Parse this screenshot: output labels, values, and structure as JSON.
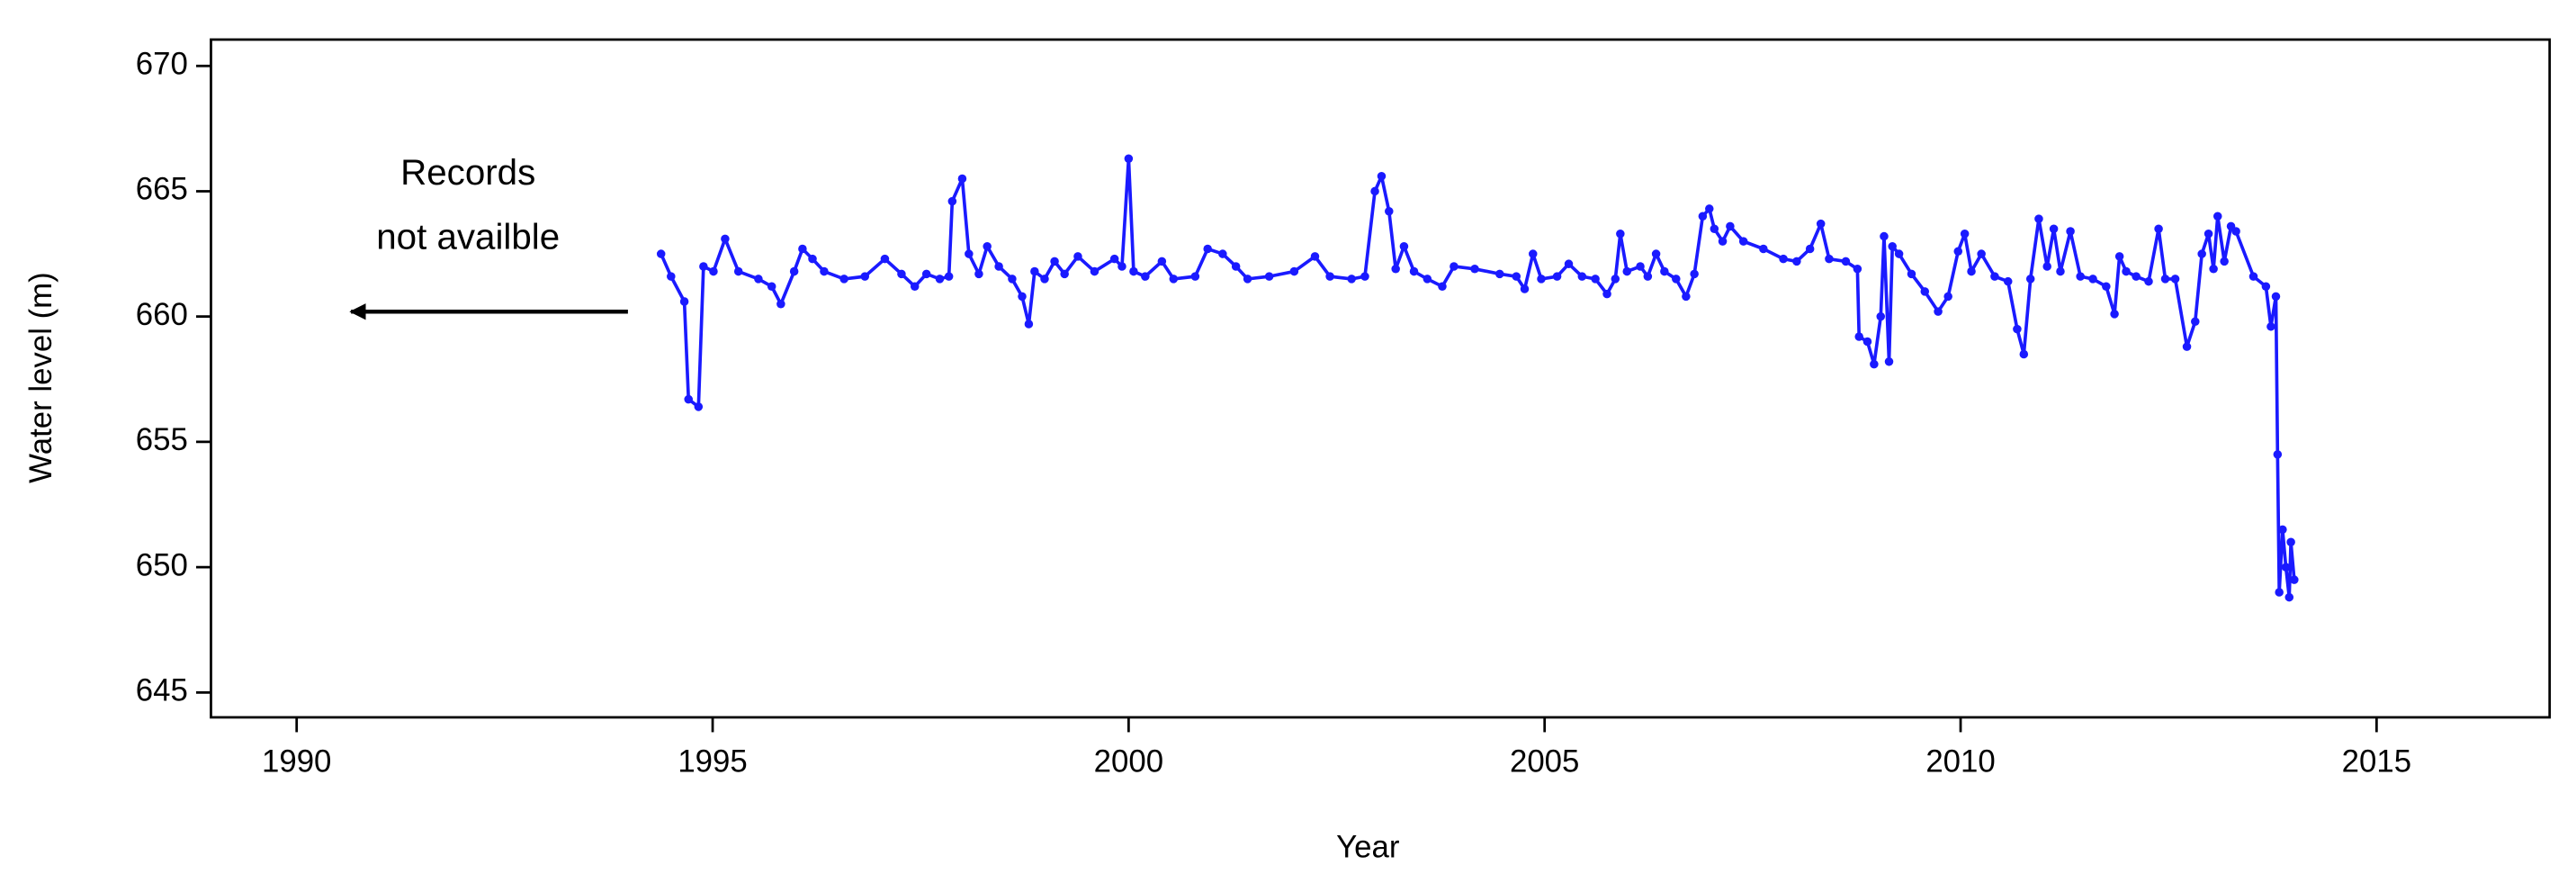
{
  "chart_data": {
    "type": "line",
    "x_label": "Year",
    "y_label": "Water level (m)",
    "annotation": [
      "Records",
      "not availble"
    ],
    "xlim": [
      1988.97,
      2017.08
    ],
    "xticks": [
      1990,
      1995,
      2000,
      2005,
      2010,
      2015
    ],
    "ylim": [
      644.01,
      671.05
    ],
    "yticks": [
      645,
      650,
      655,
      660,
      665,
      670
    ],
    "markers": true,
    "series": [
      {
        "color": "#1a1aff",
        "x": [
          1994.38,
          1994.5,
          1994.66,
          1994.71,
          1994.83,
          1994.89,
          1995.01,
          1995.15,
          1995.31,
          1995.55,
          1995.71,
          1995.82,
          1995.98,
          1996.08,
          1996.2,
          1996.34,
          1996.58,
          1996.83,
          1997.07,
          1997.27,
          1997.43,
          1997.57,
          1997.73,
          1997.84,
          1997.88,
          1998.0,
          1998.08,
          1998.2,
          1998.3,
          1998.44,
          1998.6,
          1998.72,
          1998.8,
          1998.87,
          1998.99,
          1999.11,
          1999.23,
          1999.39,
          1999.59,
          1999.83,
          1999.92,
          2000.0,
          2000.06,
          2000.2,
          2000.4,
          2000.54,
          2000.8,
          2000.95,
          2001.13,
          2001.29,
          2001.43,
          2001.69,
          2001.99,
          2002.24,
          2002.42,
          2002.68,
          2002.84,
          2002.96,
          2003.04,
          2003.13,
          2003.21,
          2003.31,
          2003.43,
          2003.59,
          2003.77,
          2003.91,
          2004.16,
          2004.46,
          2004.66,
          2004.76,
          2004.86,
          2004.96,
          2005.15,
          2005.29,
          2005.45,
          2005.61,
          2005.75,
          2005.85,
          2005.91,
          2005.99,
          2006.15,
          2006.24,
          2006.34,
          2006.44,
          2006.58,
          2006.7,
          2006.8,
          2006.9,
          2006.98,
          2007.04,
          2007.14,
          2007.23,
          2007.39,
          2007.63,
          2007.87,
          2008.03,
          2008.19,
          2008.32,
          2008.42,
          2008.62,
          2008.76,
          2008.78,
          2008.88,
          2008.96,
          2009.04,
          2009.08,
          2009.14,
          2009.18,
          2009.26,
          2009.41,
          2009.57,
          2009.73,
          2009.85,
          2009.97,
          2010.05,
          2010.13,
          2010.25,
          2010.41,
          2010.57,
          2010.68,
          2010.76,
          2010.84,
          2010.94,
          2011.04,
          2011.12,
          2011.2,
          2011.32,
          2011.44,
          2011.59,
          2011.75,
          2011.85,
          2011.91,
          2011.99,
          2012.11,
          2012.26,
          2012.38,
          2012.46,
          2012.58,
          2012.72,
          2012.82,
          2012.9,
          2012.98,
          2013.04,
          2013.09,
          2013.17,
          2013.25,
          2013.31,
          2013.52,
          2013.67,
          2013.73,
          2013.79,
          2013.81,
          2013.83,
          2013.87,
          2013.91,
          2013.95,
          2013.97,
          2014.01
        ],
        "values": [
          662.5,
          661.6,
          660.6,
          656.7,
          656.4,
          662.0,
          661.8,
          663.1,
          661.8,
          661.5,
          661.2,
          660.5,
          661.8,
          662.7,
          662.3,
          661.8,
          661.5,
          661.6,
          662.3,
          661.7,
          661.2,
          661.7,
          661.5,
          661.6,
          664.6,
          665.5,
          662.5,
          661.7,
          662.8,
          662.0,
          661.5,
          660.8,
          659.7,
          661.8,
          661.5,
          662.2,
          661.7,
          662.4,
          661.8,
          662.3,
          662.0,
          666.3,
          661.8,
          661.6,
          662.2,
          661.5,
          661.6,
          662.7,
          662.5,
          662.0,
          661.5,
          661.6,
          661.8,
          662.4,
          661.6,
          661.5,
          661.6,
          665.0,
          665.6,
          664.2,
          661.9,
          662.8,
          661.8,
          661.5,
          661.2,
          662.0,
          661.9,
          661.7,
          661.6,
          661.1,
          662.5,
          661.5,
          661.6,
          662.1,
          661.6,
          661.5,
          660.9,
          661.5,
          663.3,
          661.8,
          662.0,
          661.6,
          662.5,
          661.8,
          661.5,
          660.8,
          661.7,
          664.0,
          664.3,
          663.5,
          663.0,
          663.6,
          663.0,
          662.7,
          662.3,
          662.2,
          662.7,
          663.7,
          662.3,
          662.2,
          661.9,
          659.2,
          659.0,
          658.1,
          660.0,
          663.2,
          658.2,
          662.8,
          662.5,
          661.7,
          661.0,
          660.2,
          660.8,
          662.6,
          663.3,
          661.8,
          662.5,
          661.6,
          661.4,
          659.5,
          658.5,
          661.5,
          663.9,
          662.0,
          663.5,
          661.8,
          663.4,
          661.6,
          661.5,
          661.2,
          660.1,
          662.4,
          661.8,
          661.6,
          661.4,
          663.5,
          661.5,
          661.5,
          658.8,
          659.8,
          662.5,
          663.3,
          661.9,
          664.0,
          662.2,
          663.6,
          663.4,
          661.6,
          661.2,
          659.6,
          660.8,
          654.5,
          649.0,
          651.5,
          650.0,
          648.8,
          651.0,
          649.5
        ]
      }
    ]
  }
}
